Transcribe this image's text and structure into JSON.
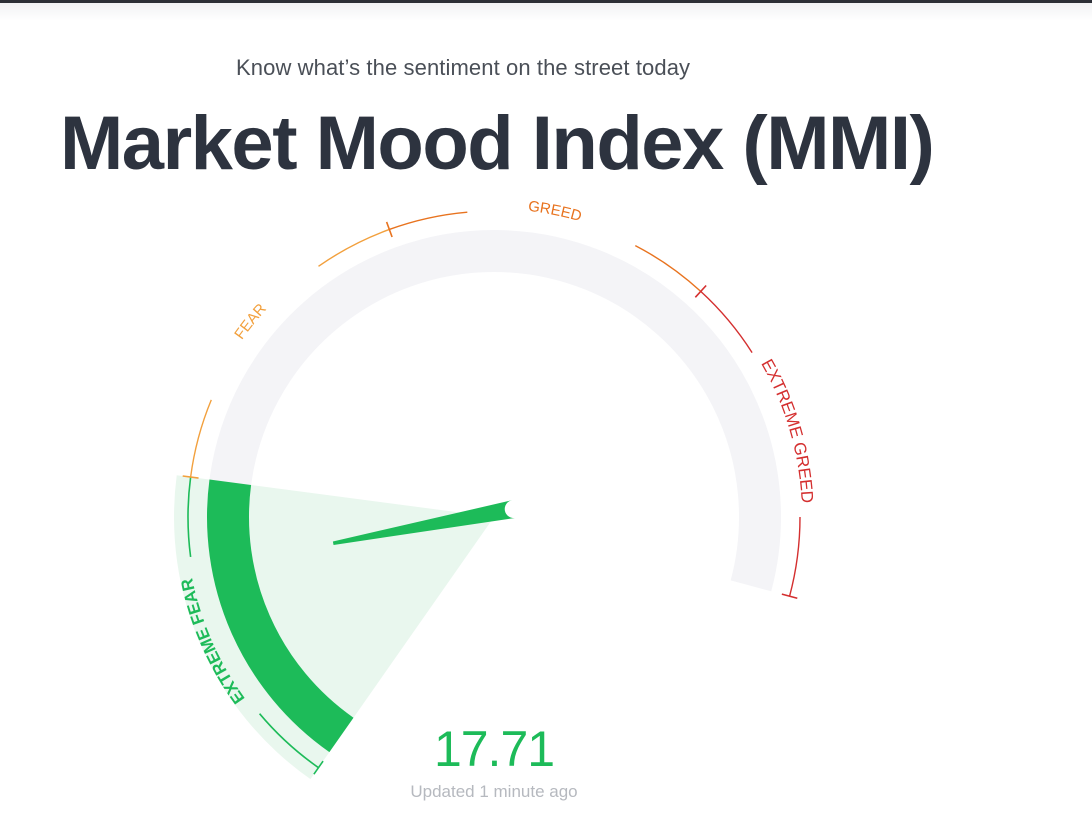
{
  "header": {
    "subtitle": "Know what’s the sentiment on the street today",
    "title": "Market Mood Index (MMI)"
  },
  "gauge": {
    "zones": [
      {
        "key": "extreme_fear",
        "label": "EXTREME FEAR",
        "color": "#1dbb59"
      },
      {
        "key": "fear",
        "label": "FEAR",
        "color": "#f2a03d"
      },
      {
        "key": "greed",
        "label": "GREED",
        "color": "#e8731f"
      },
      {
        "key": "extreme_greed",
        "label": "EXTREME GREED",
        "color": "#d42f2f"
      }
    ],
    "active_zone": "extreme_fear",
    "track_color": "#f4f4f7",
    "highlight_color": "#e9f7ee"
  },
  "reading": {
    "value": "17.71",
    "value_num": 17.71,
    "updated": "Updated 1 minute ago"
  },
  "colors": {
    "title": "#2d333f",
    "subtitle": "#4a4f57",
    "value": "#1dbb59",
    "updated": "#b6b9bf"
  }
}
